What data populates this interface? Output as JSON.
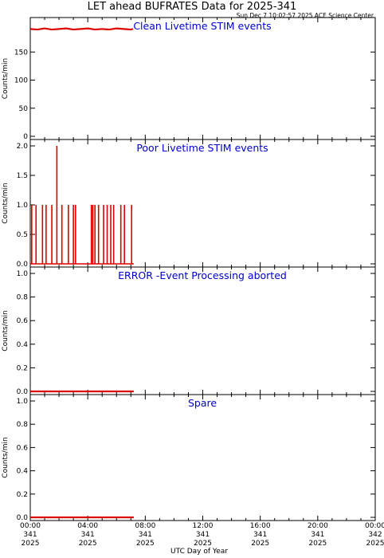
{
  "title": "LET ahead BUFRATES Data for 2025-341",
  "stamp": "Sun Dec  7 10:02:57 2025 ACE Science Center",
  "x_label": "UTC Day of Year",
  "x_ticks": [
    {
      "hour": 0,
      "l1": "00:00",
      "l2": "341",
      "l3": "2025"
    },
    {
      "hour": 4,
      "l1": "04:00",
      "l2": "341",
      "l3": "2025"
    },
    {
      "hour": 8,
      "l1": "08:00",
      "l2": "341",
      "l3": "2025"
    },
    {
      "hour": 12,
      "l1": "12:00",
      "l2": "341",
      "l3": "2025"
    },
    {
      "hour": 16,
      "l1": "16:00",
      "l2": "341",
      "l3": "2025"
    },
    {
      "hour": 20,
      "l1": "20:00",
      "l2": "341",
      "l3": "2025"
    },
    {
      "hour": 24,
      "l1": "00:00",
      "l2": "342",
      "l3": "2025"
    }
  ],
  "colors": {
    "data": "#dd0000",
    "panel_title": "#0000cc",
    "axes": "#000000"
  },
  "chart_data": [
    {
      "type": "line",
      "panel_title": "Clean Livetime STIM events",
      "ylabel": "Counts/min",
      "ylim": [
        0,
        200
      ],
      "yticks": [
        0,
        50,
        100,
        150
      ],
      "xlim_hours": [
        0,
        24
      ],
      "series": [
        {
          "x": [
            0.0,
            0.5,
            1.0,
            1.5,
            2.0,
            2.5,
            3.0,
            3.5,
            4.0,
            4.5,
            5.0,
            5.5,
            6.0,
            6.5,
            7.0,
            7.15
          ],
          "y": [
            191,
            190,
            192,
            190,
            191,
            192,
            190,
            191,
            192,
            190,
            191,
            190,
            192,
            191,
            190,
            191
          ]
        }
      ]
    },
    {
      "type": "line",
      "panel_title": "Poor Livetime STIM events",
      "ylabel": "Counts/min",
      "ylim": [
        0,
        2
      ],
      "yticks": [
        0.0,
        0.5,
        1.0,
        1.5,
        2.0
      ],
      "xlim_hours": [
        0,
        24
      ],
      "series": [
        {
          "spikes": [
            {
              "x": 0.1,
              "y": 1
            },
            {
              "x": 0.4,
              "y": 1
            },
            {
              "x": 0.85,
              "y": 1
            },
            {
              "x": 1.1,
              "y": 1
            },
            {
              "x": 1.5,
              "y": 1
            },
            {
              "x": 1.85,
              "y": 2
            },
            {
              "x": 2.2,
              "y": 1
            },
            {
              "x": 2.65,
              "y": 1
            },
            {
              "x": 3.0,
              "y": 1
            },
            {
              "x": 3.15,
              "y": 1
            },
            {
              "x": 4.25,
              "y": 1
            },
            {
              "x": 4.35,
              "y": 1
            },
            {
              "x": 4.5,
              "y": 1
            },
            {
              "x": 4.75,
              "y": 1
            },
            {
              "x": 5.1,
              "y": 1
            },
            {
              "x": 5.35,
              "y": 1
            },
            {
              "x": 5.6,
              "y": 1
            },
            {
              "x": 5.8,
              "y": 1
            },
            {
              "x": 6.3,
              "y": 1
            },
            {
              "x": 6.55,
              "y": 1
            },
            {
              "x": 7.05,
              "y": 1
            }
          ],
          "baseline_end": 7.2
        }
      ]
    },
    {
      "type": "line",
      "panel_title": "ERROR -Event Processing aborted",
      "ylabel": "Counts/min",
      "ylim": [
        0,
        1
      ],
      "yticks": [
        0.0,
        0.2,
        0.4,
        0.6,
        0.8,
        1.0
      ],
      "xlim_hours": [
        0,
        24
      ],
      "series": [
        {
          "x": [
            0,
            7.2
          ],
          "y": [
            0,
            0
          ]
        }
      ]
    },
    {
      "type": "line",
      "panel_title": "Spare",
      "ylabel": "Counts/min",
      "ylim": [
        0,
        1
      ],
      "yticks": [
        0.0,
        0.2,
        0.4,
        0.6,
        0.8,
        1.0
      ],
      "xlim_hours": [
        0,
        24
      ],
      "series": [
        {
          "x": [
            0,
            7.2
          ],
          "y": [
            0,
            0
          ]
        }
      ]
    }
  ]
}
